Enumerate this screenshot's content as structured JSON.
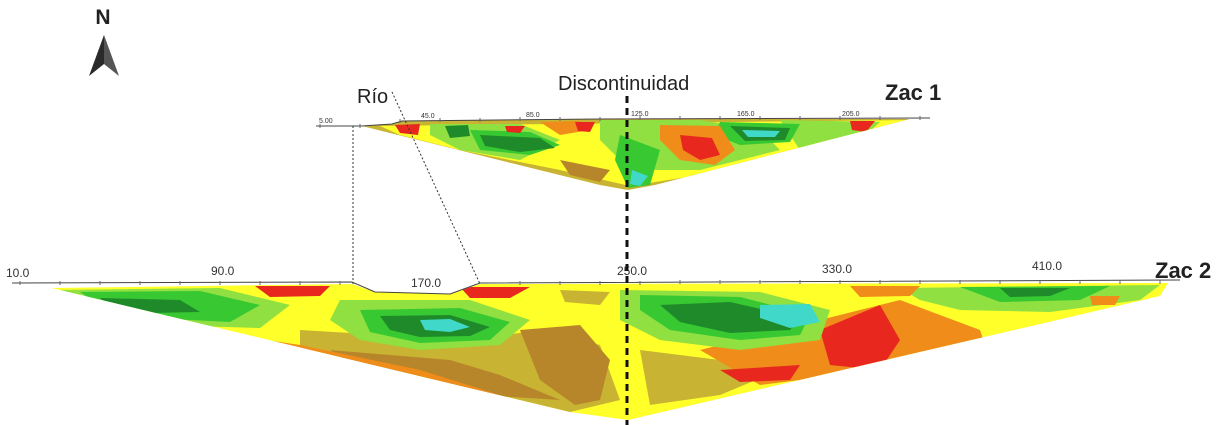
{
  "north_label": "N",
  "labels": {
    "river": "Río",
    "discontinuity": "Discontinuidad",
    "profile_top": "Zac 1",
    "profile_bottom": "Zac 2"
  },
  "profile_top_ticks": [
    "5.00",
    "45.0",
    "85.0",
    "125.0",
    "165.0",
    "205.0"
  ],
  "profile_bottom_ticks": [
    "10.0",
    "90.0",
    "170.0",
    "250.0",
    "330.0",
    "410.0"
  ],
  "colors": {
    "dark_green": "#1f8a2a",
    "green": "#38c832",
    "light_green": "#8fe040",
    "yellow": "#ffff2a",
    "khaki": "#c8b432",
    "brown": "#b8862a",
    "orange": "#f08c1a",
    "red": "#e8281e",
    "cyan": "#40d8c8",
    "magenta": "#c01878"
  }
}
